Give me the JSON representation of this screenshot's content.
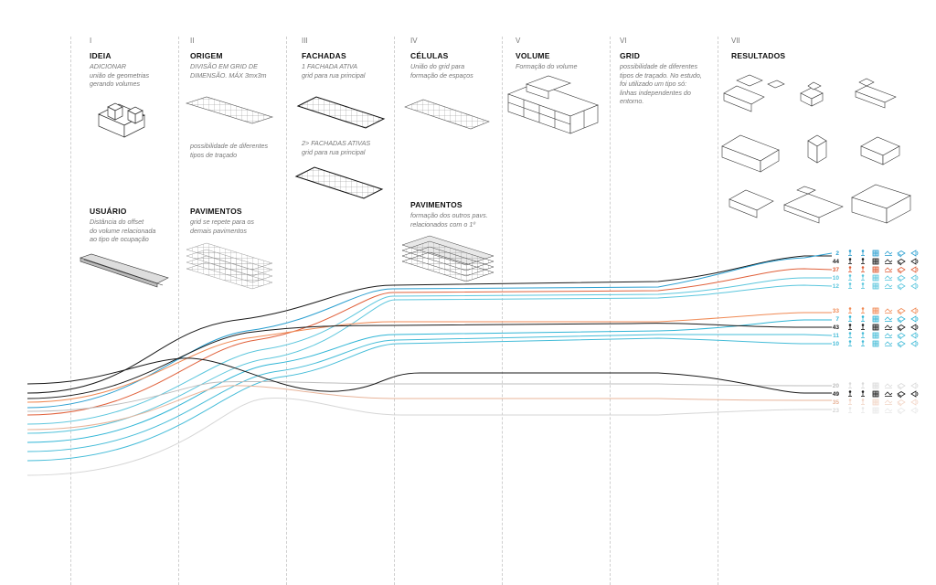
{
  "columns": [
    {
      "roman": "I",
      "title": "IDEIA",
      "desc_lines": [
        "ADICIONAR",
        "união de geometrias",
        "gerando volumes"
      ]
    },
    {
      "roman": "II",
      "title": "ORIGEM",
      "desc_lines": [
        "DIVISÃO EM GRID DE",
        "DIMENSÃO. MÁX 3mx3m"
      ]
    },
    {
      "roman": "III",
      "title": "FACHADAS",
      "desc_lines": [
        "1 FACHADA ATIVA",
        "grid para rua principal"
      ]
    },
    {
      "roman": "IV",
      "title": "CÉLULAS",
      "desc_lines": [
        "União do grid para",
        "formação de espaços"
      ]
    },
    {
      "roman": "V",
      "title": "VOLUME",
      "desc_lines": [
        "Formação do volume"
      ]
    },
    {
      "roman": "VI",
      "title": "GRID",
      "desc_lines": [
        "possibilidade de diferentes",
        "tipos de traçado. No estudo,",
        "foi utilizado um tipo só:",
        "linhas independentes do",
        "entorno."
      ]
    },
    {
      "roman": "VII",
      "title": "RESULTADOS",
      "desc_lines": []
    }
  ],
  "sub_blocks": {
    "usuario": {
      "title": "USUÁRIO",
      "desc_lines": [
        "Distância do offset",
        "do volume relacionada",
        "ao tipo de ocupação"
      ]
    },
    "origem_note": {
      "desc_lines": [
        "possibilidade de diferentes",
        "tipos de traçado"
      ]
    },
    "fachadas2": {
      "desc_lines": [
        "2> FACHADAS ATIVAS",
        "grid para rua principal"
      ]
    },
    "pavimentos_ii": {
      "title": "PAVIMENTOS",
      "desc_lines": [
        "grid se repete para os",
        "demais pavimentos"
      ]
    },
    "pavimentos_iv": {
      "title": "PAVIMENTOS",
      "desc_lines": [
        "formação dos outros pavs.",
        "relacionados com o 1º"
      ]
    }
  },
  "legend_groups": [
    {
      "rows": [
        {
          "value": "2",
          "color": "#2b9fd0",
          "faded": false
        },
        {
          "value": "44",
          "color": "#1a1a1a",
          "faded": false
        },
        {
          "value": "37",
          "color": "#e0603a",
          "faded": false
        },
        {
          "value": "10",
          "color": "#5bc6dd",
          "faded": false
        },
        {
          "value": "12",
          "color": "#5bc6dd",
          "faded": false
        }
      ]
    },
    {
      "rows": [
        {
          "value": "33",
          "color": "#f08a55",
          "faded": false
        },
        {
          "value": "7",
          "color": "#2fb5d6",
          "faded": false
        },
        {
          "value": "43",
          "color": "#1a1a1a",
          "faded": false
        },
        {
          "value": "11",
          "color": "#45bcd8",
          "faded": false
        },
        {
          "value": "10",
          "color": "#45bcd8",
          "faded": false
        }
      ]
    },
    {
      "rows": [
        {
          "value": "20",
          "color": "#bdbdbd",
          "faded": true
        },
        {
          "value": "49",
          "color": "#1a1a1a",
          "faded": false
        },
        {
          "value": "35",
          "color": "#e8b49a",
          "faded": true
        },
        {
          "value": "23",
          "color": "#d6d6d6",
          "faded": true
        }
      ]
    }
  ],
  "icons": [
    "person-icon",
    "person-icon",
    "grid-cell-icon",
    "bicycle-icon",
    "layers-icon",
    "sound-icon"
  ]
}
